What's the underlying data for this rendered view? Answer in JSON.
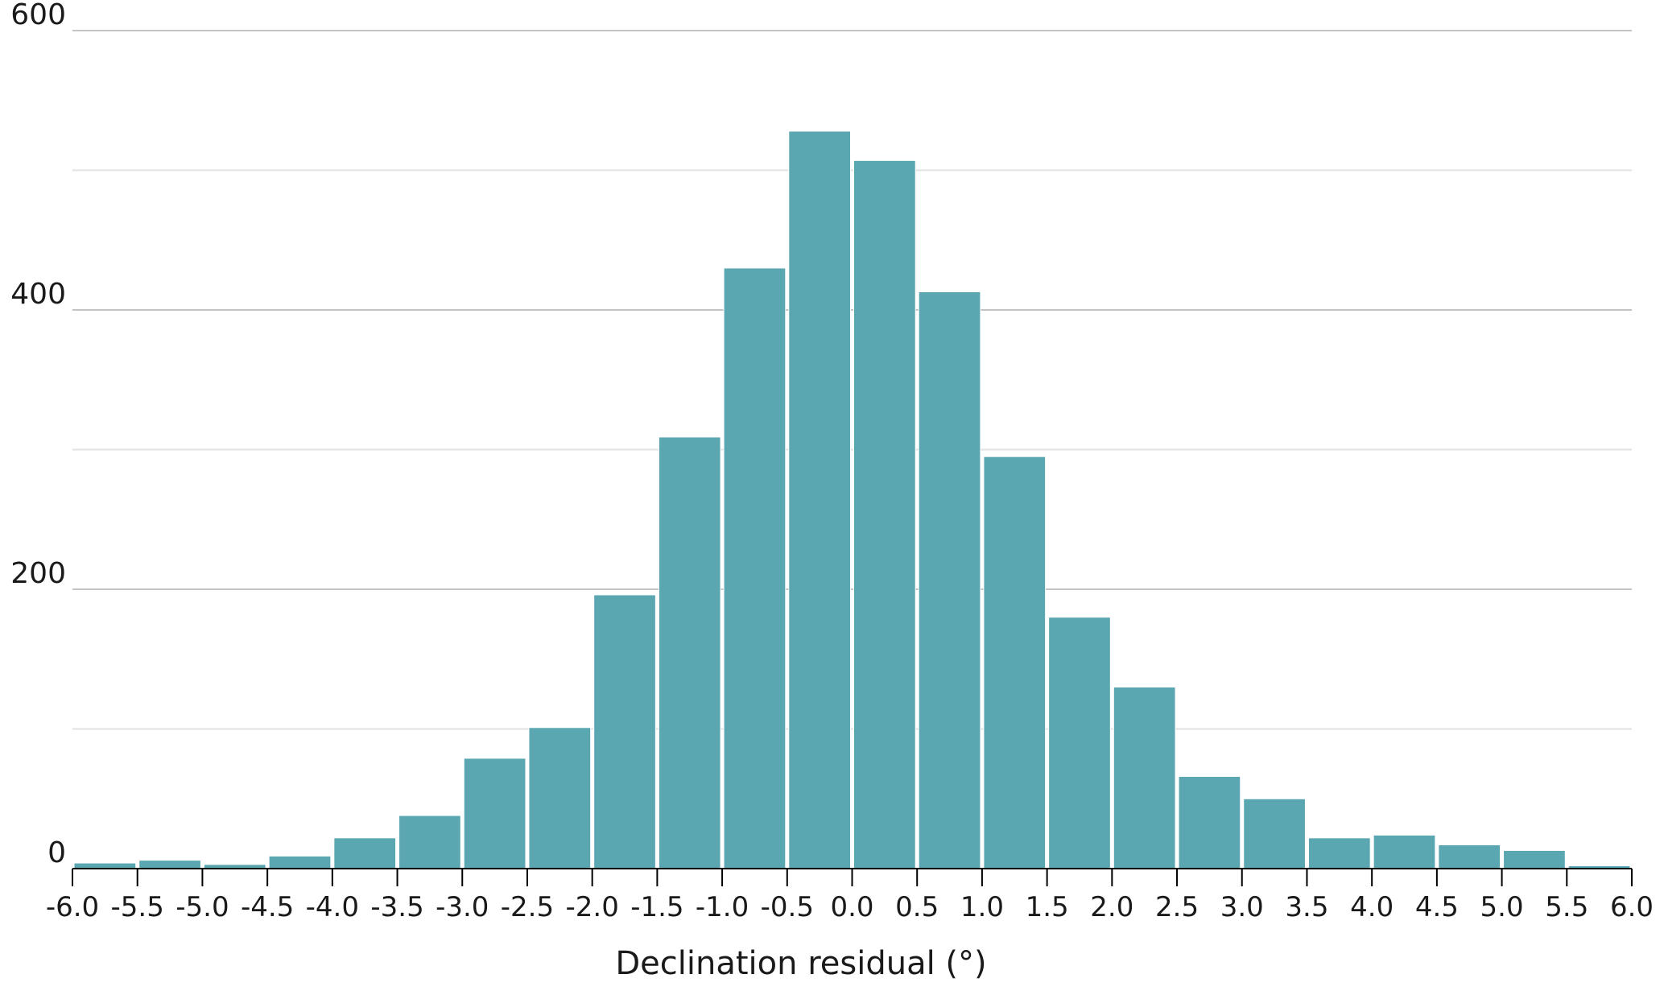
{
  "chart_data": {
    "type": "bar",
    "title": "",
    "xlabel": "Declination residual (°)",
    "ylabel": "",
    "bin_edges": [
      -6.0,
      -5.5,
      -5.0,
      -4.5,
      -4.0,
      -3.5,
      -3.0,
      -2.5,
      -2.0,
      -1.5,
      -1.0,
      -0.5,
      0.0,
      0.5,
      1.0,
      1.5,
      2.0,
      2.5,
      3.0,
      3.5,
      4.0,
      4.5,
      5.0,
      5.5,
      6.0
    ],
    "x_tick_labels": [
      "-6.0",
      "-5.5",
      "-5.0",
      "-4.5",
      "-4.0",
      "-3.5",
      "-3.0",
      "-2.5",
      "-2.0",
      "-1.5",
      "-1.0",
      "-0.5",
      "0.0",
      "0.5",
      "1.0",
      "1.5",
      "2.0",
      "2.5",
      "3.0",
      "3.5",
      "4.0",
      "4.5",
      "5.0",
      "5.5",
      "6.0"
    ],
    "values": [
      4,
      6,
      3,
      9,
      22,
      38,
      79,
      101,
      196,
      309,
      430,
      528,
      507,
      413,
      295,
      180,
      130,
      66,
      50,
      22,
      24,
      17,
      13,
      2
    ],
    "xlim": [
      -6.0,
      6.0
    ],
    "ylim": [
      0,
      600
    ],
    "y_ticks": [
      0,
      200,
      400,
      600
    ],
    "y_tick_labels": [
      "0",
      "200",
      "400",
      "600"
    ],
    "y_minor_gridlines": [
      100,
      300,
      500
    ],
    "grid": true,
    "bar_color": "#5ba7b1",
    "bar_edge_color": "#ffffff",
    "gridline_color": "#c4c4c4",
    "minor_gridline_color": "#e2e2e2",
    "axis_color": "#000000"
  }
}
